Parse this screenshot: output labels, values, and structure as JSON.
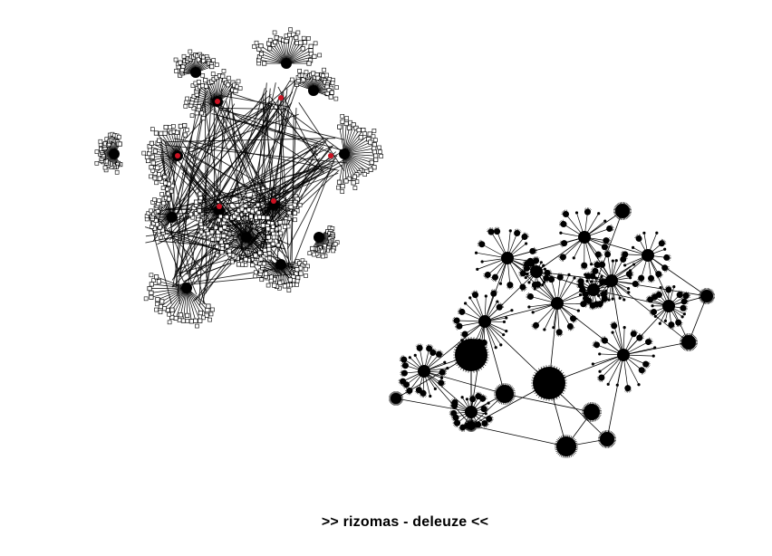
{
  "caption": ">> rizomas - deleuze <<",
  "colors": {
    "background": "#ffffff",
    "edge": "#000000",
    "node_fill": "#ffffff",
    "node_stroke": "#000000",
    "hub_highlight": "#cc1122"
  }
}
